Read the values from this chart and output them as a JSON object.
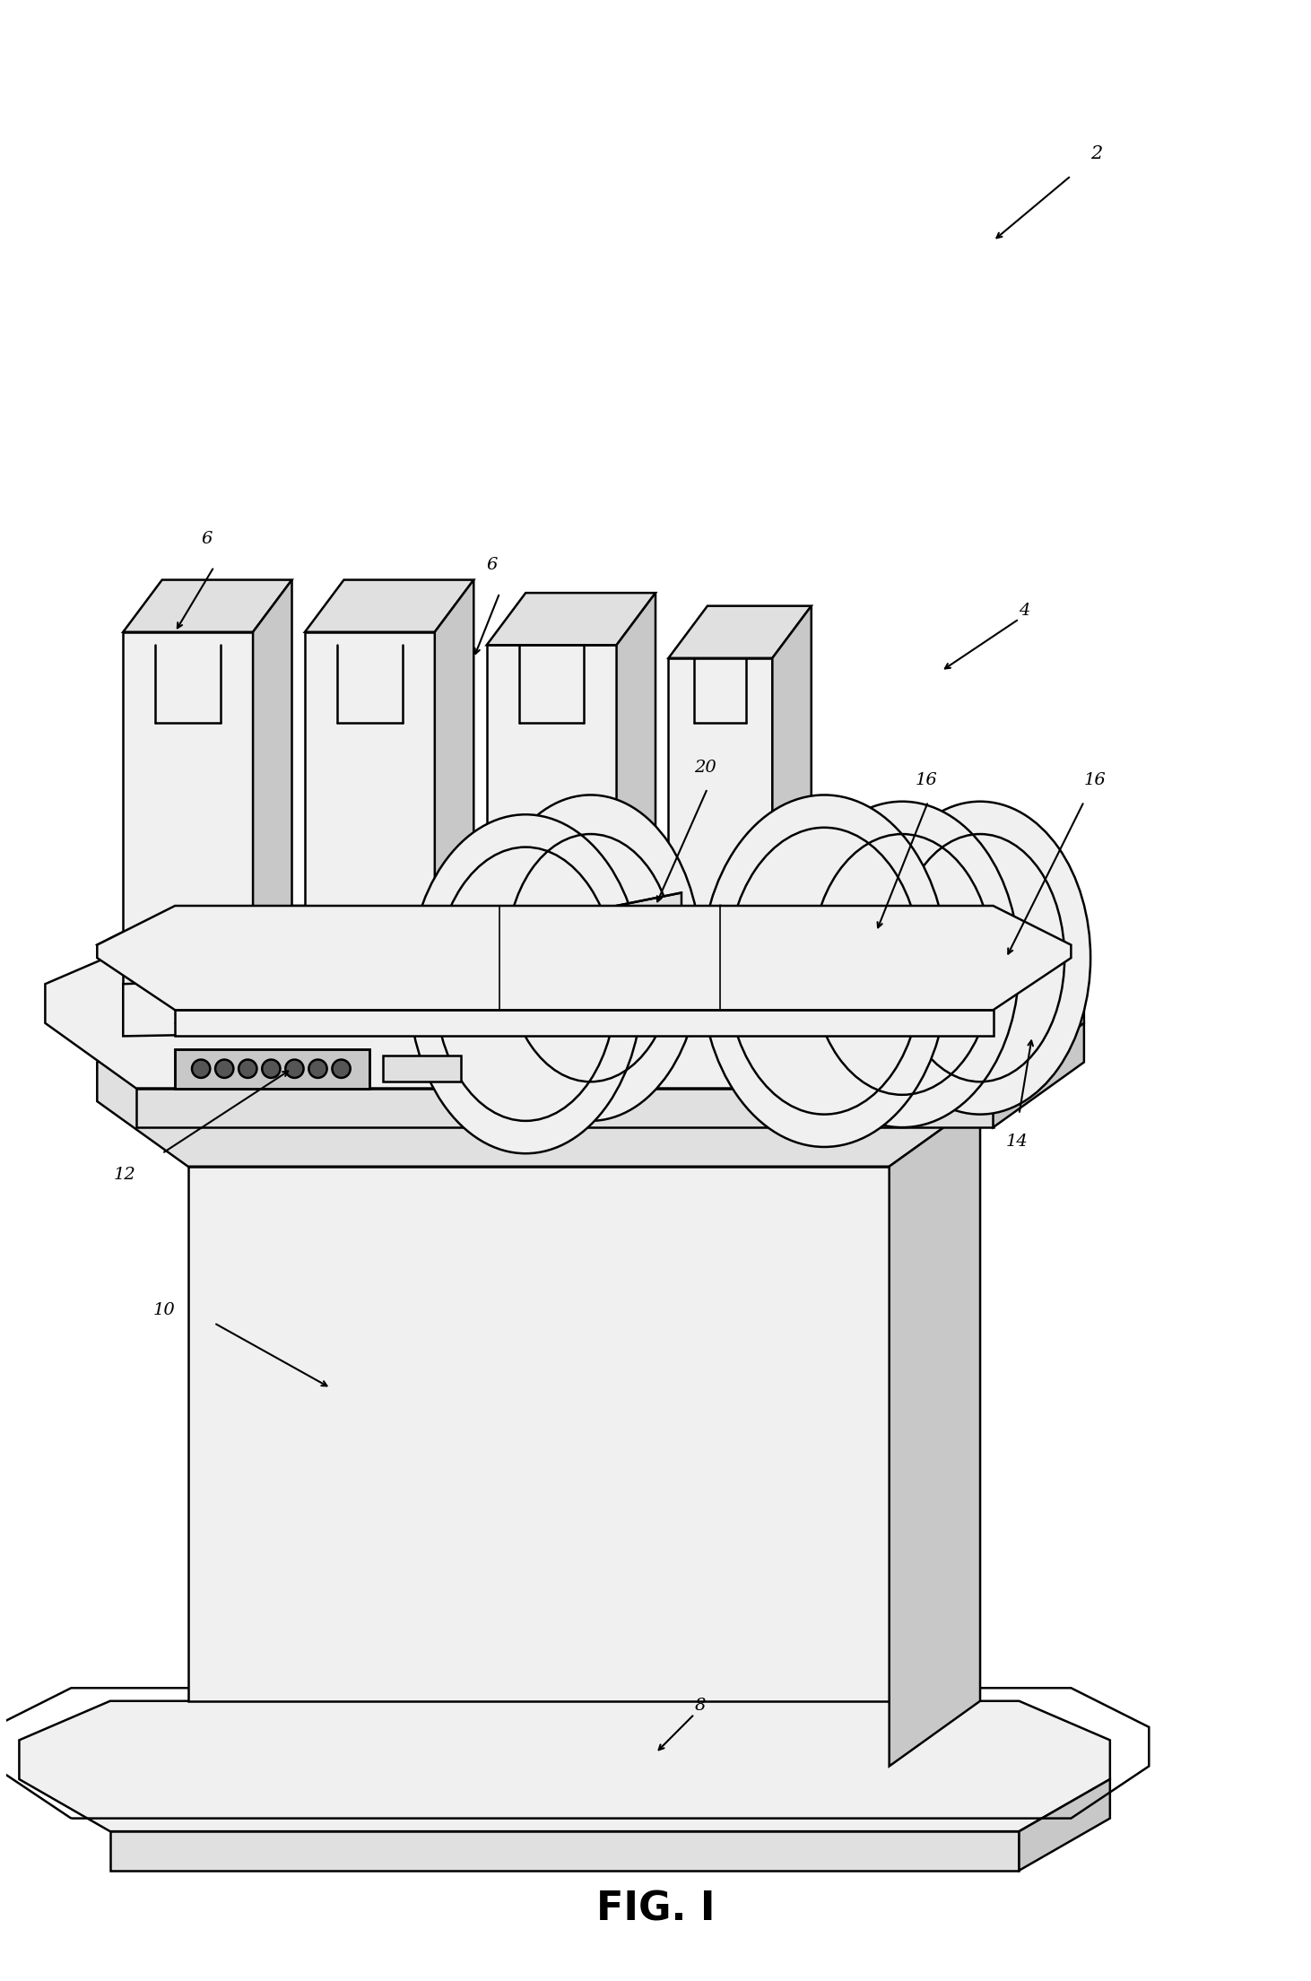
{
  "title": "FIG. I",
  "title_fontsize": 32,
  "title_fontweight": "bold",
  "bg_color": "#ffffff",
  "line_color": "#000000",
  "fill_light": "#f0f0f0",
  "fill_medium": "#e0e0e0",
  "fill_dark": "#c8c8c8",
  "fill_white": "#ffffff",
  "lw_main": 1.8,
  "lw_thin": 1.2,
  "lw_thick": 2.2
}
